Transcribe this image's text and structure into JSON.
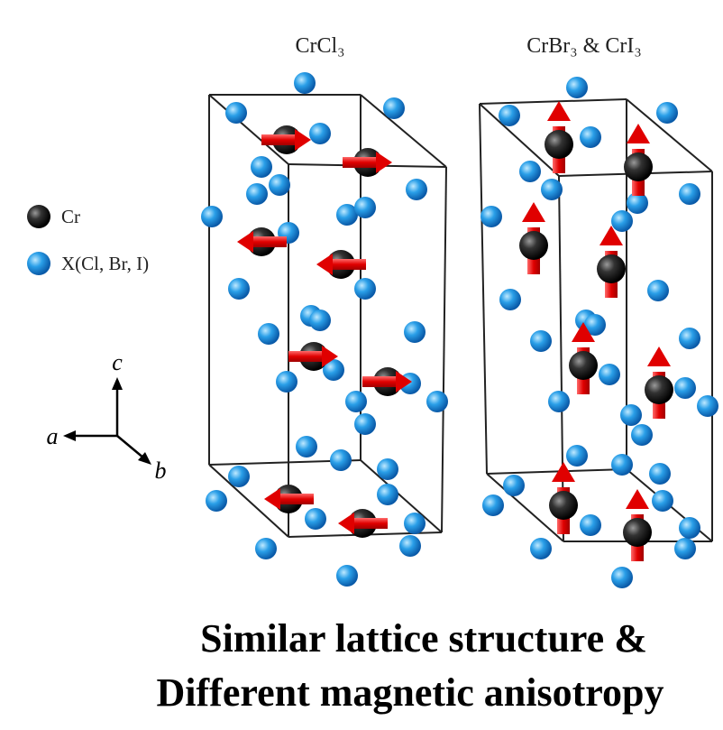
{
  "panels": {
    "left_title": "CrCl₃",
    "right_title": "CrBr₃ & CrI₃"
  },
  "legend": {
    "cr": "Cr",
    "x": "X(Cl, Br, I)"
  },
  "axes": {
    "c": "c",
    "a": "a",
    "b": "b"
  },
  "caption": {
    "line1": "Similar lattice structure &",
    "line2": "Different magnetic anisotropy"
  }
}
